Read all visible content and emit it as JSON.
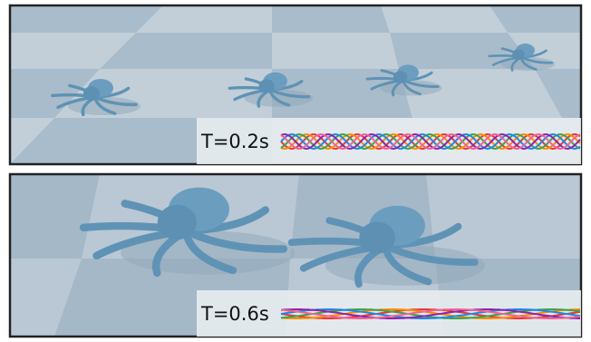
{
  "panels": [
    {
      "label": "T=0.2s"
    },
    {
      "label": "T=0.6s"
    }
  ]
}
